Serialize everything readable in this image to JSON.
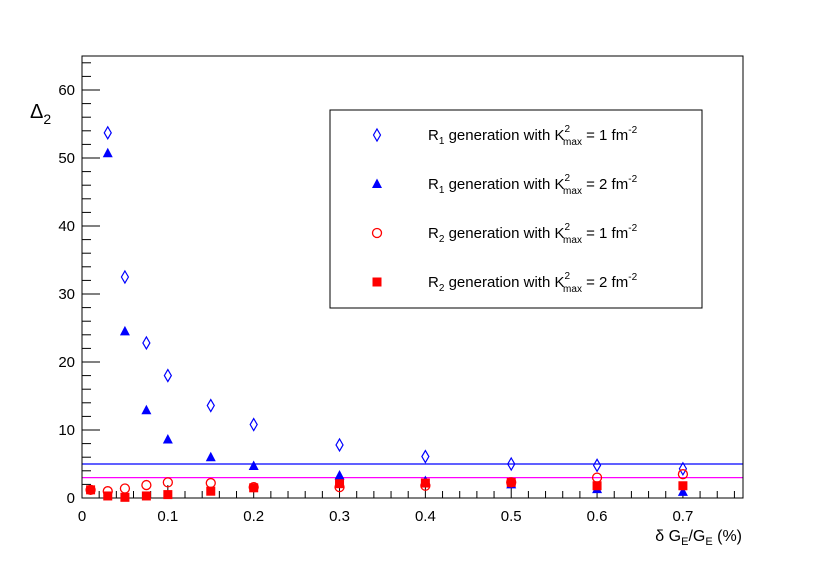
{
  "chart_data": {
    "type": "scatter",
    "title": "",
    "xlabel_main": "δ G",
    "xlabel_sub1": "E",
    "xlabel_mid": "/G",
    "xlabel_sub2": "E",
    "xlabel_unit": " (%)",
    "ylabel_main": "Δ",
    "ylabel_sub": "2",
    "xlim": [
      0,
      0.77
    ],
    "ylim": [
      0,
      65
    ],
    "x_ticks": [
      0,
      0.1,
      0.2,
      0.3,
      0.4,
      0.5,
      0.6,
      0.7
    ],
    "x_tick_labels": [
      "0",
      "0.1",
      "0.2",
      "0.3",
      "0.4",
      "0.5",
      "0.6",
      "0.7"
    ],
    "y_ticks": [
      0,
      10,
      20,
      30,
      40,
      50,
      60
    ],
    "y_tick_labels": [
      "0",
      "10",
      "20",
      "30",
      "40",
      "50",
      "60"
    ],
    "legend_position": "top-right",
    "series": [
      {
        "name_prefix": "R",
        "name_sub": "1",
        "name_mid": " generation with K",
        "name_sup1": "2",
        "name_sub2": "max",
        "name_value": " = 1 fm",
        "name_sup2": "-2",
        "marker": "open-diamond",
        "color": "#0000ff",
        "x": [
          0.03,
          0.05,
          0.075,
          0.1,
          0.15,
          0.2,
          0.3,
          0.4,
          0.5,
          0.6,
          0.7
        ],
        "y": [
          53.7,
          32.5,
          22.8,
          18.0,
          13.6,
          10.8,
          7.8,
          6.1,
          5.0,
          4.8,
          4.3
        ]
      },
      {
        "name_prefix": "R",
        "name_sub": "1",
        "name_mid": " generation with K",
        "name_sup1": "2",
        "name_sub2": "max",
        "name_value": " = 2 fm",
        "name_sup2": "-2",
        "marker": "filled-triangle",
        "color": "#0000ff",
        "x": [
          0.03,
          0.05,
          0.075,
          0.1,
          0.15,
          0.2,
          0.3,
          0.4,
          0.5,
          0.6,
          0.7
        ],
        "y": [
          50.7,
          24.5,
          12.9,
          8.6,
          6.0,
          4.7,
          3.3,
          2.5,
          2.0,
          1.3,
          0.9
        ]
      },
      {
        "name_prefix": "R",
        "name_sub": "2",
        "name_mid": " generation with K",
        "name_sup1": "2",
        "name_sub2": "max",
        "name_value": " = 1 fm",
        "name_sup2": "-2",
        "marker": "open-circle",
        "color": "#ff0000",
        "x": [
          0.01,
          0.03,
          0.05,
          0.075,
          0.1,
          0.15,
          0.2,
          0.3,
          0.4,
          0.5,
          0.6,
          0.7
        ],
        "y": [
          1.2,
          1.0,
          1.4,
          1.9,
          2.3,
          2.2,
          1.6,
          1.6,
          1.8,
          2.3,
          3.0,
          3.5
        ]
      },
      {
        "name_prefix": "R",
        "name_sub": "2",
        "name_mid": " generation with K",
        "name_sup1": "2",
        "name_sub2": "max",
        "name_value": " = 2 fm",
        "name_sup2": "-2",
        "marker": "filled-square",
        "color": "#ff0000",
        "x": [
          0.01,
          0.03,
          0.05,
          0.075,
          0.1,
          0.15,
          0.2,
          0.3,
          0.4,
          0.5,
          0.6,
          0.7
        ],
        "y": [
          1.2,
          0.3,
          0.1,
          0.3,
          0.5,
          1.0,
          1.5,
          2.1,
          2.2,
          2.3,
          1.8,
          1.8
        ]
      }
    ],
    "reference_lines": [
      {
        "name": "blue-reference-line",
        "y": 5.0,
        "color": "#0000ff"
      },
      {
        "name": "magenta-reference-line",
        "y": 3.0,
        "color": "#ff00ff"
      }
    ]
  }
}
